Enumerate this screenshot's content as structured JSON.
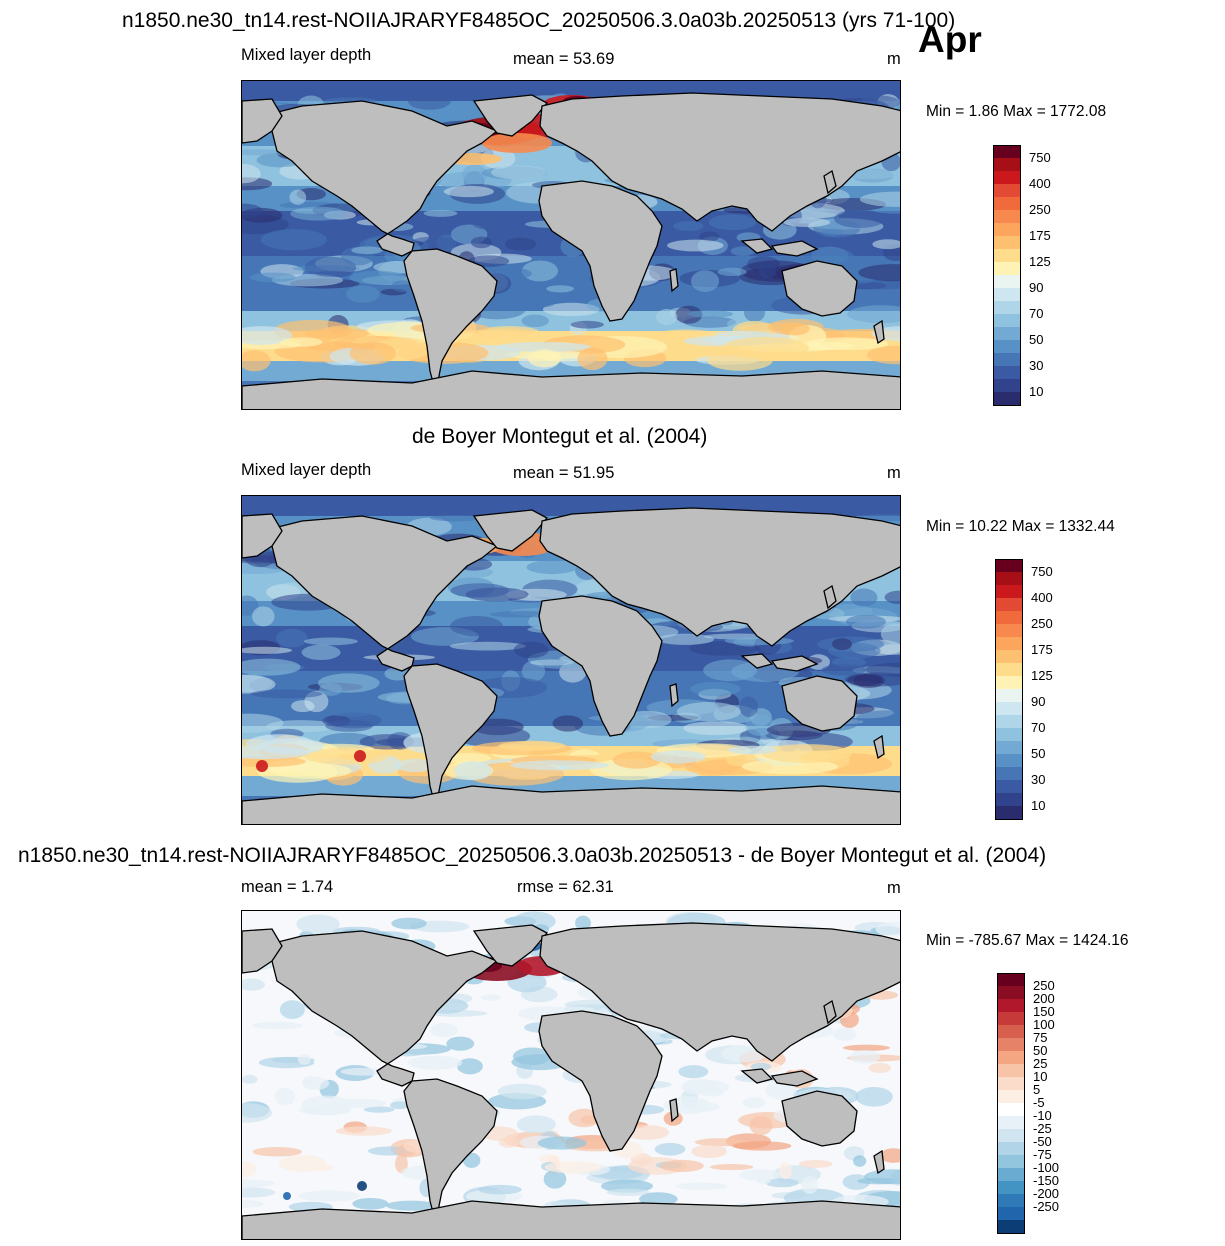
{
  "month": "Apr",
  "panels": [
    {
      "title": "n1850.ne30_tn14.rest-NOIIAJRARYF8485OC_20250506.3.0a03b.20250513 (yrs 71-100)",
      "left_label": "Mixed layer depth",
      "center_label": "mean =  53.69",
      "units": "m",
      "minmax": "Min =   1.86 Max = 1772.08",
      "colorbar": {
        "labels": [
          "750",
          "400",
          "250",
          "175",
          "125",
          "90",
          "70",
          "50",
          "30",
          "10"
        ],
        "colors": [
          "#67001f",
          "#a50f15",
          "#cb181d",
          "#e34a33",
          "#f16a3c",
          "#f7894e",
          "#fca55d",
          "#fdc070",
          "#fddc8c",
          "#fef3b5",
          "#eaf5f1",
          "#cde6ef",
          "#aed5e8",
          "#8fc2de",
          "#72aad3",
          "#5891c5",
          "#4676b6",
          "#3a5ba3",
          "#30438c",
          "#2a2c6e"
        ]
      },
      "field_style": "model"
    },
    {
      "title": "de Boyer Montegut et al. (2004)",
      "left_label": "Mixed layer depth",
      "center_label": "mean =  51.95",
      "units": "m",
      "minmax": "Min =  10.22 Max = 1332.44",
      "colorbar": {
        "labels": [
          "750",
          "400",
          "250",
          "175",
          "125",
          "90",
          "70",
          "50",
          "30",
          "10"
        ],
        "colors": [
          "#67001f",
          "#a50f15",
          "#cb181d",
          "#e34a33",
          "#f16a3c",
          "#f7894e",
          "#fca55d",
          "#fdc070",
          "#fddc8c",
          "#fef3b5",
          "#eaf5f1",
          "#cde6ef",
          "#aed5e8",
          "#8fc2de",
          "#72aad3",
          "#5891c5",
          "#4676b6",
          "#3a5ba3",
          "#30438c",
          "#2a2c6e"
        ]
      },
      "field_style": "obs"
    },
    {
      "title": "n1850.ne30_tn14.rest-NOIIAJRARYF8485OC_20250506.3.0a03b.20250513 - de Boyer Montegut et al. (2004)",
      "left_label": "mean =   1.74",
      "center_label": "rmse =  62.31",
      "units": "m",
      "minmax": "Min = -785.67 Max = 1424.16",
      "colorbar": {
        "labels": [
          "250",
          "200",
          "150",
          "100",
          "75",
          "50",
          "25",
          "10",
          "5",
          "-5",
          "-10",
          "-25",
          "-50",
          "-75",
          "-100",
          "-150",
          "-200",
          "-250"
        ],
        "colors": [
          "#67001f",
          "#8b0d24",
          "#b2182b",
          "#c73a3a",
          "#d6604d",
          "#e58267",
          "#f4a582",
          "#f8c4a8",
          "#fbdccb",
          "#fdeee4",
          "#ffffff",
          "#e8f1f7",
          "#d1e5f0",
          "#b2d4e8",
          "#92c5de",
          "#6aabd2",
          "#4393c3",
          "#2f7ab6",
          "#2166ac",
          "#0d3d75"
        ]
      },
      "field_style": "diff"
    }
  ],
  "colors": {
    "land": "#bebebe",
    "coast": "#000000"
  }
}
